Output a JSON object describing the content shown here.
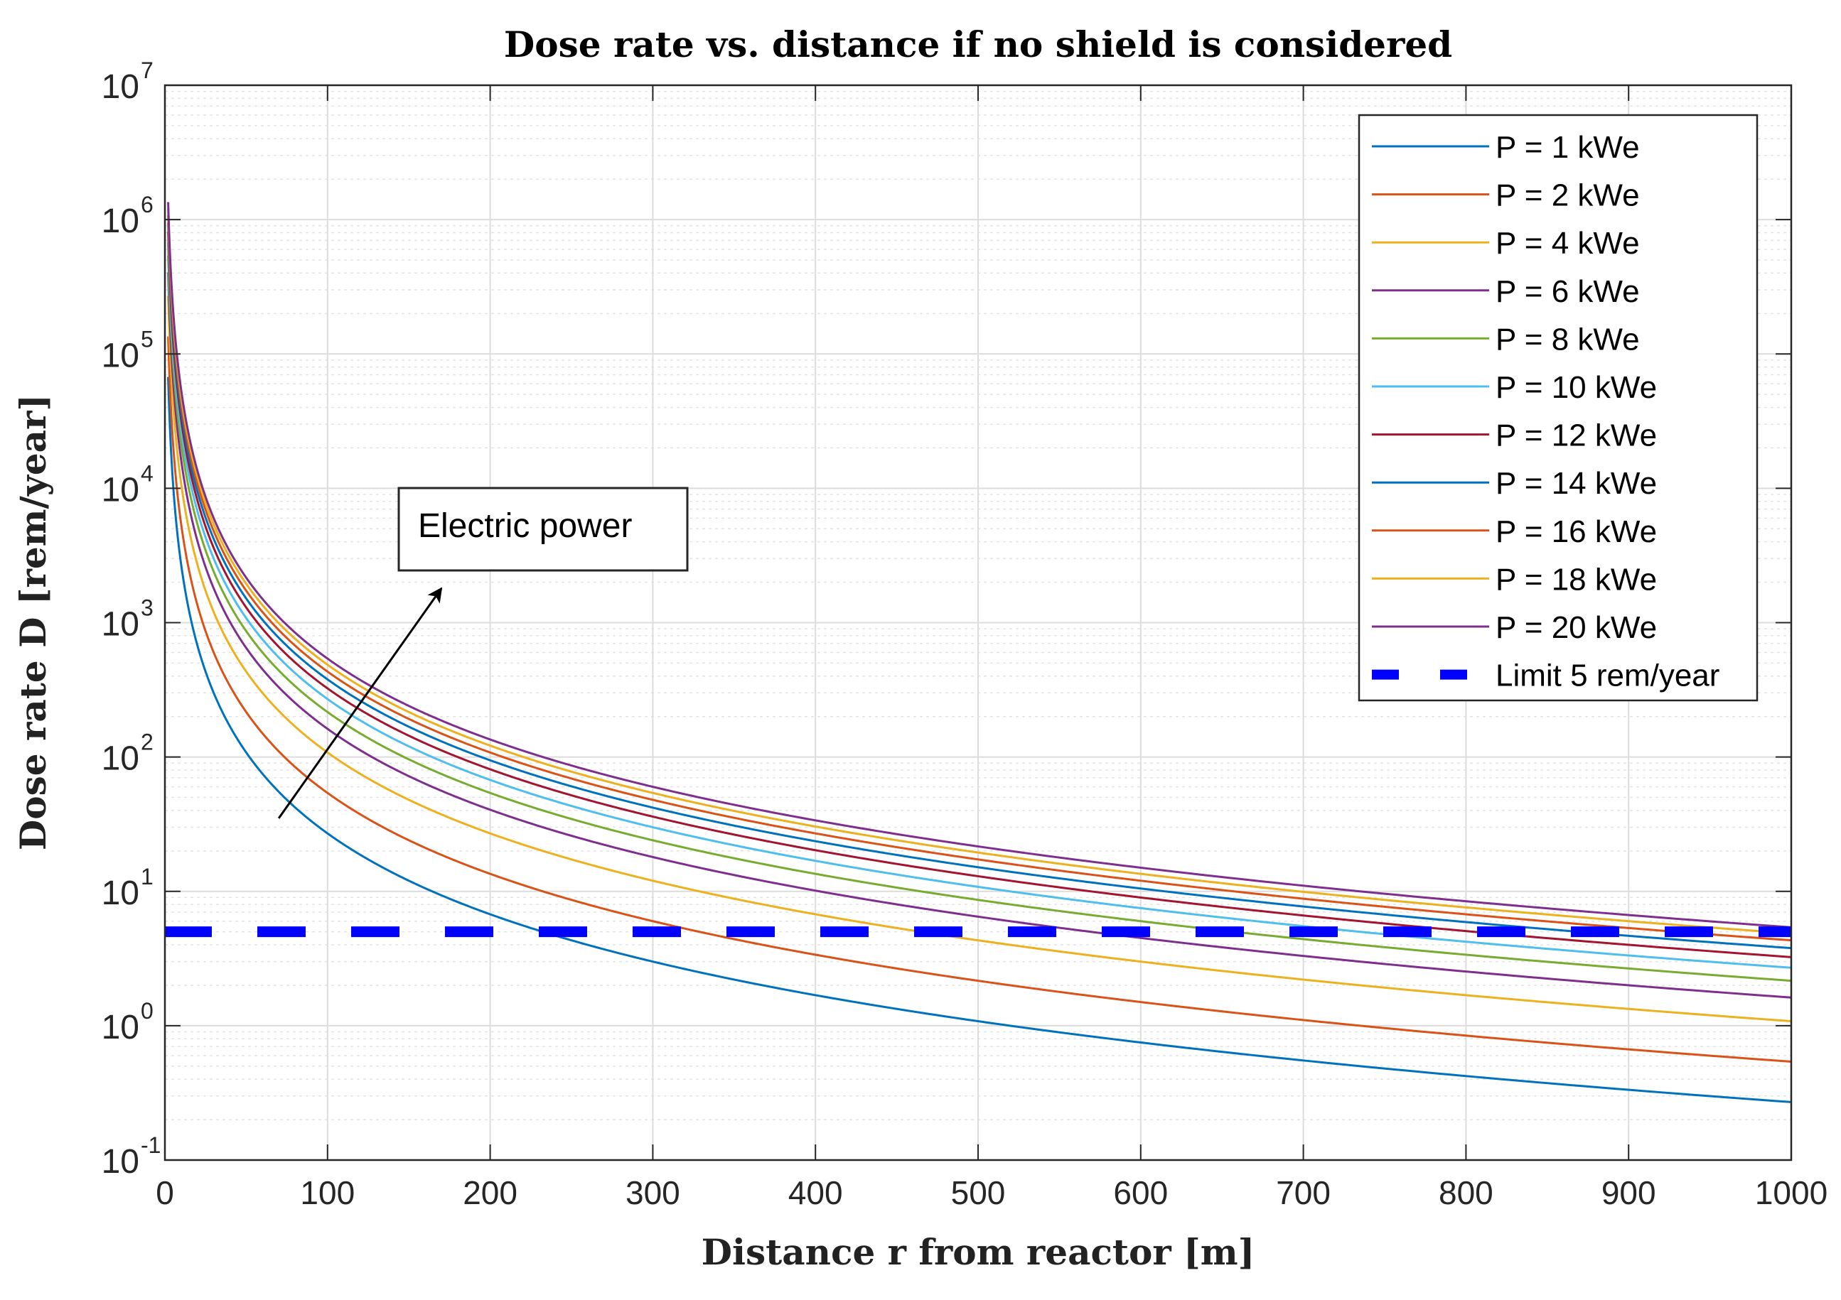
{
  "chart_data": {
    "type": "line",
    "title": "Dose rate vs. distance if no shield is considered",
    "xlabel": "Distance r from reactor [m]",
    "ylabel": "Dose rate D [rem/year]",
    "xlim": [
      0,
      1000
    ],
    "ylim": [
      0.1,
      10000000
    ],
    "yscale": "log",
    "grid": true,
    "minor_grid": true,
    "legend_position": "top-right",
    "x_ticks": [
      {
        "value": 0,
        "label": "0"
      },
      {
        "value": 100,
        "label": "100"
      },
      {
        "value": 200,
        "label": "200"
      },
      {
        "value": 300,
        "label": "300"
      },
      {
        "value": 400,
        "label": "400"
      },
      {
        "value": 500,
        "label": "500"
      },
      {
        "value": 600,
        "label": "600"
      },
      {
        "value": 700,
        "label": "700"
      },
      {
        "value": 800,
        "label": "800"
      },
      {
        "value": 900,
        "label": "900"
      },
      {
        "value": 1000,
        "label": "1000"
      }
    ],
    "y_ticks": [
      {
        "value": 0.1,
        "base": "10",
        "exp": "-1"
      },
      {
        "value": 1,
        "base": "10",
        "exp": "0"
      },
      {
        "value": 10,
        "base": "10",
        "exp": "1"
      },
      {
        "value": 100,
        "base": "10",
        "exp": "2"
      },
      {
        "value": 1000,
        "base": "10",
        "exp": "3"
      },
      {
        "value": 10000,
        "base": "10",
        "exp": "4"
      },
      {
        "value": 100000,
        "base": "10",
        "exp": "5"
      },
      {
        "value": 1000000,
        "base": "10",
        "exp": "6"
      },
      {
        "value": 10000000,
        "base": "10",
        "exp": "7"
      }
    ],
    "model": "D = k * P / r^2",
    "dose_constant_per_kWe": 270000,
    "r_min": 2,
    "series": [
      {
        "name": "P = 1 kWe",
        "power_kWe": 1,
        "color": "#0072BD",
        "r": [
          2,
          100,
          200,
          300,
          400,
          500,
          600,
          700,
          800,
          900,
          1000
        ],
        "values": [
          67500,
          27,
          6.75,
          3.0,
          1.69,
          1.08,
          0.75,
          0.55,
          0.42,
          0.33,
          0.27
        ]
      },
      {
        "name": "P = 2 kWe",
        "power_kWe": 2,
        "color": "#D95319",
        "r": [
          2,
          100,
          200,
          300,
          400,
          500,
          600,
          700,
          800,
          900,
          1000
        ],
        "values": [
          135000,
          54,
          13.5,
          6.0,
          3.38,
          2.16,
          1.5,
          1.1,
          0.84,
          0.67,
          0.54
        ]
      },
      {
        "name": "P = 4 kWe",
        "power_kWe": 4,
        "color": "#EDB120",
        "r": [
          2,
          100,
          200,
          300,
          400,
          500,
          600,
          700,
          800,
          900,
          1000
        ],
        "values": [
          270000,
          108,
          27,
          12,
          6.75,
          4.32,
          3.0,
          2.2,
          1.69,
          1.33,
          1.08
        ]
      },
      {
        "name": "P = 6 kWe",
        "power_kWe": 6,
        "color": "#7E2F8E",
        "r": [
          2,
          100,
          200,
          300,
          400,
          500,
          600,
          700,
          800,
          900,
          1000
        ],
        "values": [
          405000,
          162,
          40.5,
          18,
          10.1,
          6.48,
          4.5,
          3.31,
          2.53,
          2.0,
          1.62
        ]
      },
      {
        "name": "P = 8 kWe",
        "power_kWe": 8,
        "color": "#77AC30",
        "r": [
          2,
          100,
          200,
          300,
          400,
          500,
          600,
          700,
          800,
          900,
          1000
        ],
        "values": [
          540000,
          216,
          54,
          24,
          13.5,
          8.64,
          6.0,
          4.41,
          3.38,
          2.67,
          2.16
        ]
      },
      {
        "name": "P = 10 kWe",
        "power_kWe": 10,
        "color": "#4DBEEE",
        "r": [
          2,
          100,
          200,
          300,
          400,
          500,
          600,
          700,
          800,
          900,
          1000
        ],
        "values": [
          675000,
          270,
          67.5,
          30,
          16.9,
          10.8,
          7.5,
          5.51,
          4.22,
          3.33,
          2.7
        ]
      },
      {
        "name": "P = 12 kWe",
        "power_kWe": 12,
        "color": "#A2142F",
        "r": [
          2,
          100,
          200,
          300,
          400,
          500,
          600,
          700,
          800,
          900,
          1000
        ],
        "values": [
          810000,
          324,
          81,
          36,
          20.3,
          13.0,
          9.0,
          6.61,
          5.06,
          4.0,
          3.24
        ]
      },
      {
        "name": "P = 14 kWe",
        "power_kWe": 14,
        "color": "#0072BD",
        "r": [
          2,
          100,
          200,
          300,
          400,
          500,
          600,
          700,
          800,
          900,
          1000
        ],
        "values": [
          945000,
          378,
          94.5,
          42,
          23.6,
          15.1,
          10.5,
          7.71,
          5.91,
          4.67,
          3.78
        ]
      },
      {
        "name": "P = 16 kWe",
        "power_kWe": 16,
        "color": "#D95319",
        "r": [
          2,
          100,
          200,
          300,
          400,
          500,
          600,
          700,
          800,
          900,
          1000
        ],
        "values": [
          1080000,
          432,
          108,
          48,
          27,
          17.3,
          12,
          8.82,
          6.75,
          5.33,
          4.32
        ]
      },
      {
        "name": "P = 18 kWe",
        "power_kWe": 18,
        "color": "#EDB120",
        "r": [
          2,
          100,
          200,
          300,
          400,
          500,
          600,
          700,
          800,
          900,
          1000
        ],
        "values": [
          1215000,
          486,
          121.5,
          54,
          30.4,
          19.4,
          13.5,
          9.92,
          7.59,
          6.0,
          4.86
        ]
      },
      {
        "name": "P = 20 kWe",
        "power_kWe": 20,
        "color": "#7E2F8E",
        "r": [
          2,
          100,
          200,
          300,
          400,
          500,
          600,
          700,
          800,
          900,
          1000
        ],
        "values": [
          1350000,
          540,
          135,
          60,
          33.8,
          21.6,
          15,
          11.0,
          8.44,
          6.67,
          5.4
        ]
      }
    ],
    "limit": {
      "name": "Limit 5 rem/year",
      "value": 5,
      "color": "#0000FF",
      "style": "dashed"
    },
    "annotation": {
      "text": "Electric power",
      "arrow_from": [
        70,
        35
      ],
      "arrow_to": [
        170,
        1800
      ]
    }
  }
}
